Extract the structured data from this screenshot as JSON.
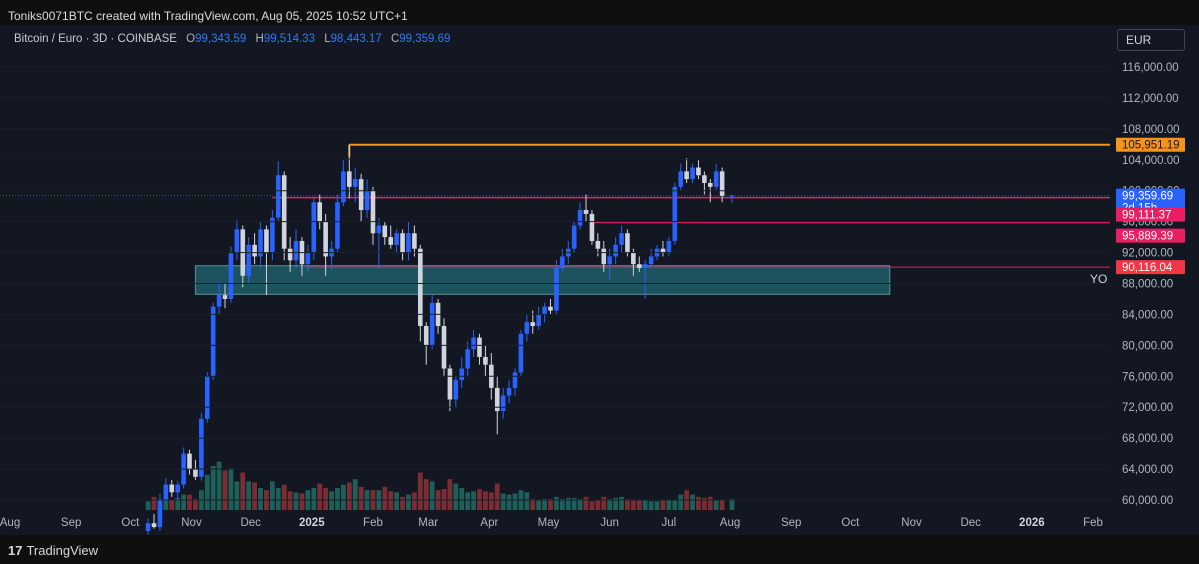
{
  "header": {
    "created_text": "Toniks0071BTC created with TradingView.com, Aug 05, 2025 10:52 UTC+1"
  },
  "legend": {
    "symbol": "Bitcoin / Euro · 3D · COINBASE",
    "o_label": "O",
    "o_value": "99,343.59",
    "h_label": "H",
    "h_value": "99,514.33",
    "l_label": "L",
    "l_value": "98,443.17",
    "c_label": "C",
    "c_value": "99,359.69"
  },
  "currency": "EUR",
  "footer": {
    "logo_mark": "17",
    "logo_text": "TradingView"
  },
  "colors": {
    "up": "#2962ff",
    "down": "#d1d4dc",
    "volume_up": "#1e5f59",
    "volume_down": "#7a2e33",
    "resistance": "#f7931a",
    "level": "#e91e63",
    "zone_fill": "#1f5e69",
    "background": "#131722"
  },
  "chart_data": {
    "type": "candlestick",
    "y_axis_labels": [
      "116,000.00",
      "112,000.00",
      "108,000.00",
      "104,000.00",
      "100,000.00",
      "96,000.00",
      "92,000.00",
      "88,000.00",
      "84,000.00",
      "80,000.00",
      "76,000.00",
      "72,000.00",
      "68,000.00",
      "64,000.00",
      "60,000.00"
    ],
    "y_axis_values": [
      116000,
      112000,
      108000,
      104000,
      100000,
      96000,
      92000,
      88000,
      84000,
      80000,
      76000,
      72000,
      68000,
      64000,
      60000
    ],
    "ylim": [
      59000,
      120000
    ],
    "x_axis_labels": [
      {
        "label": "Aug",
        "bold": false,
        "date": "2024-08-01"
      },
      {
        "label": "Sep",
        "bold": false,
        "date": "2024-09-01"
      },
      {
        "label": "Oct",
        "bold": false,
        "date": "2024-10-01"
      },
      {
        "label": "Nov",
        "bold": false,
        "date": "2024-11-01"
      },
      {
        "label": "Dec",
        "bold": false,
        "date": "2024-12-01"
      },
      {
        "label": "2025",
        "bold": true,
        "date": "2025-01-01"
      },
      {
        "label": "Feb",
        "bold": false,
        "date": "2025-02-01"
      },
      {
        "label": "Mar",
        "bold": false,
        "date": "2025-03-01"
      },
      {
        "label": "Apr",
        "bold": false,
        "date": "2025-04-01"
      },
      {
        "label": "May",
        "bold": false,
        "date": "2025-05-01"
      },
      {
        "label": "Jun",
        "bold": false,
        "date": "2025-06-01"
      },
      {
        "label": "Jul",
        "bold": false,
        "date": "2025-07-01"
      },
      {
        "label": "Aug",
        "bold": false,
        "date": "2025-08-01"
      },
      {
        "label": "Sep",
        "bold": false,
        "date": "2025-09-01"
      },
      {
        "label": "Oct",
        "bold": false,
        "date": "2025-10-01"
      },
      {
        "label": "Nov",
        "bold": false,
        "date": "2025-11-01"
      },
      {
        "label": "Dec",
        "bold": false,
        "date": "2025-12-01"
      },
      {
        "label": "2026",
        "bold": true,
        "date": "2026-01-01"
      },
      {
        "label": "Feb",
        "bold": false,
        "date": "2026-02-01"
      }
    ],
    "candles": [
      {
        "d": "2024-10-10",
        "o": 56000,
        "h": 57600,
        "l": 55500,
        "c": 57000
      },
      {
        "d": "2024-10-13",
        "o": 57000,
        "h": 58200,
        "l": 56300,
        "c": 56500
      },
      {
        "d": "2024-10-16",
        "o": 56500,
        "h": 60800,
        "l": 56000,
        "c": 60000
      },
      {
        "d": "2024-10-19",
        "o": 60000,
        "h": 62800,
        "l": 59600,
        "c": 62000
      },
      {
        "d": "2024-10-22",
        "o": 62000,
        "h": 62600,
        "l": 60400,
        "c": 61000
      },
      {
        "d": "2024-10-25",
        "o": 61000,
        "h": 62500,
        "l": 60000,
        "c": 62000
      },
      {
        "d": "2024-10-28",
        "o": 62000,
        "h": 66800,
        "l": 61500,
        "c": 66000
      },
      {
        "d": "2024-10-31",
        "o": 66000,
        "h": 66500,
        "l": 63300,
        "c": 64000
      },
      {
        "d": "2024-11-03",
        "o": 64000,
        "h": 65200,
        "l": 62600,
        "c": 63000
      },
      {
        "d": "2024-11-06",
        "o": 63000,
        "h": 71300,
        "l": 62500,
        "c": 70500
      },
      {
        "d": "2024-11-09",
        "o": 70500,
        "h": 76500,
        "l": 70000,
        "c": 76000
      },
      {
        "d": "2024-11-12",
        "o": 76000,
        "h": 85500,
        "l": 75500,
        "c": 85000
      },
      {
        "d": "2024-11-15",
        "o": 85000,
        "h": 88200,
        "l": 84000,
        "c": 86500
      },
      {
        "d": "2024-11-18",
        "o": 86500,
        "h": 88000,
        "l": 84800,
        "c": 86000
      },
      {
        "d": "2024-11-21",
        "o": 86000,
        "h": 92800,
        "l": 85500,
        "c": 92000
      },
      {
        "d": "2024-11-24",
        "o": 92000,
        "h": 96200,
        "l": 91000,
        "c": 95000
      },
      {
        "d": "2024-11-27",
        "o": 95000,
        "h": 95500,
        "l": 87500,
        "c": 89000
      },
      {
        "d": "2024-11-30",
        "o": 89000,
        "h": 94000,
        "l": 88000,
        "c": 93000
      },
      {
        "d": "2024-12-03",
        "o": 93000,
        "h": 94500,
        "l": 90500,
        "c": 91500
      },
      {
        "d": "2024-12-06",
        "o": 91500,
        "h": 96000,
        "l": 90000,
        "c": 95000
      },
      {
        "d": "2024-12-09",
        "o": 95000,
        "h": 95500,
        "l": 86500,
        "c": 92000
      },
      {
        "d": "2024-12-12",
        "o": 92000,
        "h": 97500,
        "l": 91000,
        "c": 96500
      },
      {
        "d": "2024-12-15",
        "o": 96500,
        "h": 103800,
        "l": 96000,
        "c": 102000
      },
      {
        "d": "2024-12-18",
        "o": 102000,
        "h": 102500,
        "l": 91000,
        "c": 92500
      },
      {
        "d": "2024-12-21",
        "o": 92500,
        "h": 94000,
        "l": 89500,
        "c": 91000
      },
      {
        "d": "2024-12-24",
        "o": 91000,
        "h": 95000,
        "l": 90000,
        "c": 93500
      },
      {
        "d": "2024-12-27",
        "o": 93500,
        "h": 94000,
        "l": 89000,
        "c": 90500
      },
      {
        "d": "2024-12-30",
        "o": 90500,
        "h": 93000,
        "l": 89500,
        "c": 92000
      },
      {
        "d": "2025-01-02",
        "o": 92000,
        "h": 99000,
        "l": 91000,
        "c": 98500
      },
      {
        "d": "2025-01-05",
        "o": 98500,
        "h": 99500,
        "l": 95000,
        "c": 96000
      },
      {
        "d": "2025-01-08",
        "o": 96000,
        "h": 97000,
        "l": 89000,
        "c": 91500
      },
      {
        "d": "2025-01-11",
        "o": 91500,
        "h": 93500,
        "l": 89800,
        "c": 92500
      },
      {
        "d": "2025-01-14",
        "o": 92500,
        "h": 99500,
        "l": 92000,
        "c": 98500
      },
      {
        "d": "2025-01-17",
        "o": 98500,
        "h": 104000,
        "l": 98000,
        "c": 102500
      },
      {
        "d": "2025-01-20",
        "o": 102500,
        "h": 105951,
        "l": 99000,
        "c": 100500
      },
      {
        "d": "2025-01-23",
        "o": 100500,
        "h": 103000,
        "l": 98500,
        "c": 101500
      },
      {
        "d": "2025-01-26",
        "o": 101500,
        "h": 102200,
        "l": 96000,
        "c": 97500
      },
      {
        "d": "2025-01-29",
        "o": 97500,
        "h": 101500,
        "l": 96500,
        "c": 100000
      },
      {
        "d": "2025-02-01",
        "o": 100000,
        "h": 100500,
        "l": 93000,
        "c": 94500
      },
      {
        "d": "2025-02-04",
        "o": 94500,
        "h": 96500,
        "l": 90000,
        "c": 95500
      },
      {
        "d": "2025-02-07",
        "o": 95500,
        "h": 96000,
        "l": 93000,
        "c": 94000
      },
      {
        "d": "2025-02-10",
        "o": 94000,
        "h": 95500,
        "l": 92500,
        "c": 93000
      },
      {
        "d": "2025-02-13",
        "o": 93000,
        "h": 95000,
        "l": 92000,
        "c": 94500
      },
      {
        "d": "2025-02-16",
        "o": 94500,
        "h": 95000,
        "l": 91000,
        "c": 92000
      },
      {
        "d": "2025-02-19",
        "o": 92000,
        "h": 96000,
        "l": 91000,
        "c": 94500
      },
      {
        "d": "2025-02-22",
        "o": 94500,
        "h": 95500,
        "l": 91500,
        "c": 92500
      },
      {
        "d": "2025-02-25",
        "o": 92500,
        "h": 93000,
        "l": 80500,
        "c": 82500
      },
      {
        "d": "2025-02-28",
        "o": 82500,
        "h": 83000,
        "l": 77500,
        "c": 80000
      },
      {
        "d": "2025-03-03",
        "o": 80000,
        "h": 86500,
        "l": 79500,
        "c": 85500
      },
      {
        "d": "2025-03-06",
        "o": 85500,
        "h": 86000,
        "l": 81500,
        "c": 82500
      },
      {
        "d": "2025-03-09",
        "o": 82500,
        "h": 83500,
        "l": 76000,
        "c": 77000
      },
      {
        "d": "2025-03-12",
        "o": 77000,
        "h": 77500,
        "l": 71500,
        "c": 73000
      },
      {
        "d": "2025-03-15",
        "o": 73000,
        "h": 76000,
        "l": 72000,
        "c": 75500
      },
      {
        "d": "2025-03-18",
        "o": 75500,
        "h": 78500,
        "l": 74500,
        "c": 77000
      },
      {
        "d": "2025-03-21",
        "o": 77000,
        "h": 80500,
        "l": 76000,
        "c": 79500
      },
      {
        "d": "2025-03-24",
        "o": 79500,
        "h": 82000,
        "l": 78500,
        "c": 81000
      },
      {
        "d": "2025-03-27",
        "o": 81000,
        "h": 81500,
        "l": 77500,
        "c": 78500
      },
      {
        "d": "2025-03-30",
        "o": 78500,
        "h": 80000,
        "l": 76000,
        "c": 77500
      },
      {
        "d": "2025-04-02",
        "o": 77500,
        "h": 79000,
        "l": 73000,
        "c": 74500
      },
      {
        "d": "2025-04-05",
        "o": 74500,
        "h": 76000,
        "l": 68500,
        "c": 71500
      },
      {
        "d": "2025-04-08",
        "o": 71500,
        "h": 74500,
        "l": 70500,
        "c": 73500
      },
      {
        "d": "2025-04-11",
        "o": 73500,
        "h": 75500,
        "l": 72500,
        "c": 74500
      },
      {
        "d": "2025-04-14",
        "o": 74500,
        "h": 77000,
        "l": 73500,
        "c": 76500
      },
      {
        "d": "2025-04-17",
        "o": 76500,
        "h": 82000,
        "l": 76000,
        "c": 81500
      },
      {
        "d": "2025-04-20",
        "o": 81500,
        "h": 84000,
        "l": 80500,
        "c": 83000
      },
      {
        "d": "2025-04-23",
        "o": 83000,
        "h": 84500,
        "l": 81500,
        "c": 82500
      },
      {
        "d": "2025-04-26",
        "o": 82500,
        "h": 85000,
        "l": 82000,
        "c": 84000
      },
      {
        "d": "2025-04-29",
        "o": 84000,
        "h": 85500,
        "l": 83000,
        "c": 85000
      },
      {
        "d": "2025-05-02",
        "o": 85000,
        "h": 86000,
        "l": 84000,
        "c": 84500
      },
      {
        "d": "2025-05-05",
        "o": 84500,
        "h": 91000,
        "l": 84000,
        "c": 90000
      },
      {
        "d": "2025-05-08",
        "o": 90000,
        "h": 92500,
        "l": 89500,
        "c": 91500
      },
      {
        "d": "2025-05-11",
        "o": 91500,
        "h": 93500,
        "l": 90500,
        "c": 92500
      },
      {
        "d": "2025-05-14",
        "o": 92500,
        "h": 96000,
        "l": 92000,
        "c": 95500
      },
      {
        "d": "2025-05-17",
        "o": 95500,
        "h": 98500,
        "l": 95000,
        "c": 97500
      },
      {
        "d": "2025-05-20",
        "o": 97500,
        "h": 99500,
        "l": 96000,
        "c": 97000
      },
      {
        "d": "2025-05-23",
        "o": 97000,
        "h": 97500,
        "l": 93000,
        "c": 93500
      },
      {
        "d": "2025-05-26",
        "o": 93500,
        "h": 94500,
        "l": 91500,
        "c": 92500
      },
      {
        "d": "2025-05-29",
        "o": 92500,
        "h": 93500,
        "l": 89500,
        "c": 90500
      },
      {
        "d": "2025-06-01",
        "o": 90500,
        "h": 92500,
        "l": 88500,
        "c": 91500
      },
      {
        "d": "2025-06-04",
        "o": 91500,
        "h": 94000,
        "l": 90500,
        "c": 93000
      },
      {
        "d": "2025-06-07",
        "o": 93000,
        "h": 95500,
        "l": 92000,
        "c": 94500
      },
      {
        "d": "2025-06-10",
        "o": 94500,
        "h": 95000,
        "l": 91500,
        "c": 92000
      },
      {
        "d": "2025-06-13",
        "o": 92000,
        "h": 92500,
        "l": 89000,
        "c": 90500
      },
      {
        "d": "2025-06-16",
        "o": 90500,
        "h": 91500,
        "l": 89500,
        "c": 90000
      },
      {
        "d": "2025-06-19",
        "o": 90000,
        "h": 91000,
        "l": 86000,
        "c": 90500
      },
      {
        "d": "2025-06-22",
        "o": 90500,
        "h": 92500,
        "l": 90000,
        "c": 91500
      },
      {
        "d": "2025-06-25",
        "o": 91500,
        "h": 93000,
        "l": 91000,
        "c": 92500
      },
      {
        "d": "2025-06-28",
        "o": 92500,
        "h": 93500,
        "l": 91500,
        "c": 92000
      },
      {
        "d": "2025-07-01",
        "o": 92000,
        "h": 94000,
        "l": 91500,
        "c": 93500
      },
      {
        "d": "2025-07-04",
        "o": 93500,
        "h": 101000,
        "l": 93000,
        "c": 100500
      },
      {
        "d": "2025-07-07",
        "o": 100500,
        "h": 103500,
        "l": 100000,
        "c": 102500
      },
      {
        "d": "2025-07-10",
        "o": 102500,
        "h": 104200,
        "l": 101000,
        "c": 101500
      },
      {
        "d": "2025-07-13",
        "o": 101500,
        "h": 103500,
        "l": 101000,
        "c": 103000
      },
      {
        "d": "2025-07-16",
        "o": 103000,
        "h": 104000,
        "l": 101500,
        "c": 102000
      },
      {
        "d": "2025-07-19",
        "o": 102000,
        "h": 102500,
        "l": 99500,
        "c": 101000
      },
      {
        "d": "2025-07-22",
        "o": 101000,
        "h": 101500,
        "l": 98500,
        "c": 100500
      },
      {
        "d": "2025-07-25",
        "o": 100500,
        "h": 103500,
        "l": 100000,
        "c": 102500
      },
      {
        "d": "2025-07-28",
        "o": 102500,
        "h": 103000,
        "l": 98500,
        "c": 99343
      },
      {
        "d": "2025-08-02",
        "o": 99343.59,
        "h": 99514.33,
        "l": 98443.17,
        "c": 99359.69
      }
    ],
    "volume_scale_max": 100,
    "volume": [
      8,
      12,
      10,
      10,
      9,
      11,
      14,
      14,
      10,
      18,
      32,
      40,
      44,
      36,
      38,
      26,
      34,
      26,
      25,
      20,
      18,
      26,
      20,
      23,
      17,
      16,
      15,
      18,
      20,
      24,
      20,
      17,
      20,
      23,
      25,
      28,
      21,
      18,
      18,
      18,
      21,
      17,
      16,
      12,
      14,
      16,
      34,
      28,
      26,
      18,
      19,
      28,
      24,
      20,
      16,
      17,
      19,
      17,
      16,
      24,
      15,
      14,
      15,
      18,
      16,
      10,
      9,
      10,
      10,
      12,
      10,
      11,
      11,
      10,
      12,
      8,
      9,
      12,
      10,
      11,
      12,
      10,
      9,
      9,
      9,
      8,
      8,
      9,
      9,
      9,
      14,
      18,
      14,
      12,
      11,
      12,
      9,
      9,
      10,
      10,
      4
    ],
    "annotations": {
      "resistance": {
        "value": 105951.19,
        "label": "105,951.19",
        "start": "2025-01-20"
      },
      "level_1": {
        "value": 99111.37,
        "label": "99,111.37",
        "start": "2024-12-12",
        "end": "2025-08-02"
      },
      "level_2": {
        "value": 95889.39,
        "label": "95,889.39",
        "start": "2025-05-23"
      },
      "yo_line": {
        "value": 90116.04,
        "label": "90,116.04",
        "start": "2024-12-29",
        "text": "YO"
      },
      "current_price": {
        "value": 99359.69,
        "label": "99,359.69",
        "countdown": "2d 15h"
      },
      "zone": {
        "top": 90300,
        "bottom": 86600,
        "start": "2024-11-03",
        "end": "2025-10-21"
      }
    }
  }
}
